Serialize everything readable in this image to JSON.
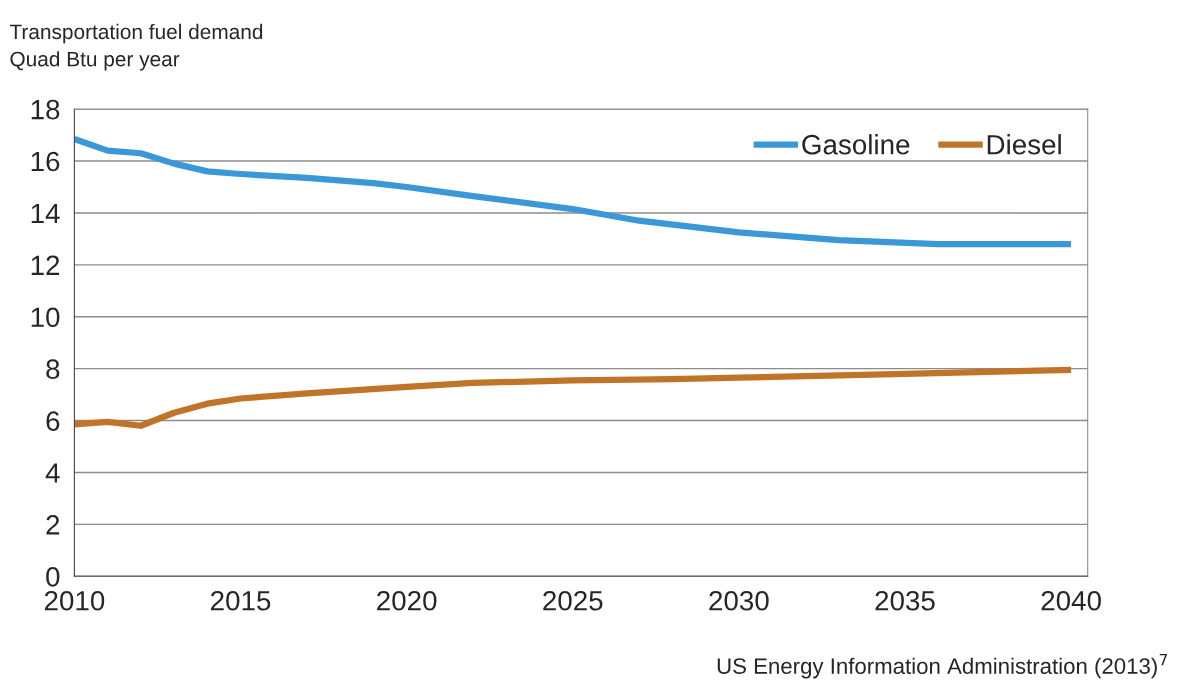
{
  "chart_data": {
    "type": "line",
    "title": "Transportation fuel demand",
    "ylabel": "Quad Btu per year",
    "annotations": [
      "US Energy Information Administration (2013)$^{7}$"
    ],
    "series": [
      {
        "name": "Gasoline",
        "color": "#3a98d8",
        "x": [
          2010,
          2011,
          2012,
          2013,
          2014,
          2015,
          2017,
          2019,
          2020,
          2022,
          2025,
          2027,
          2030,
          2033,
          2036,
          2040
        ],
        "values": [
          16.85,
          16.4,
          16.3,
          15.9,
          15.6,
          15.5,
          15.35,
          15.15,
          15.0,
          14.65,
          14.15,
          13.7,
          13.25,
          12.95,
          12.8,
          12.8
        ]
      },
      {
        "name": "Diesel",
        "color": "#c07428",
        "x": [
          2010,
          2011,
          2012,
          2013,
          2014,
          2015,
          2017,
          2020,
          2022,
          2025,
          2028,
          2030,
          2035,
          2040
        ],
        "values": [
          5.85,
          5.95,
          5.8,
          6.3,
          6.65,
          6.85,
          7.05,
          7.3,
          7.45,
          7.55,
          7.6,
          7.65,
          7.8,
          7.95
        ]
      }
    ],
    "xlim": [
      2010,
      2040.5
    ],
    "xticks": [
      2010,
      2015,
      2020,
      2025,
      2030,
      2035,
      2040
    ],
    "ylim": [
      0,
      18
    ],
    "yticks": [
      0,
      2,
      4,
      6,
      8,
      10,
      12,
      14,
      16,
      18
    ],
    "grid": "y",
    "legend": "top right",
    "marker": "none",
    "line_style": "solid"
  }
}
